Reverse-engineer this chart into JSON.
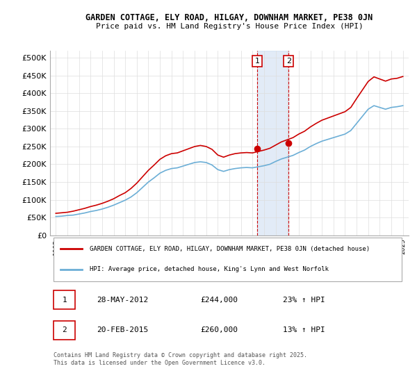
{
  "title1": "GARDEN COTTAGE, ELY ROAD, HILGAY, DOWNHAM MARKET, PE38 0JN",
  "title2": "Price paid vs. HM Land Registry's House Price Index (HPI)",
  "ylabel": "",
  "ylim": [
    0,
    520000
  ],
  "yticks": [
    0,
    50000,
    100000,
    150000,
    200000,
    250000,
    300000,
    350000,
    400000,
    450000,
    500000
  ],
  "ytick_labels": [
    "£0",
    "£50K",
    "£100K",
    "£150K",
    "£200K",
    "£250K",
    "£300K",
    "£350K",
    "£400K",
    "£450K",
    "£500K"
  ],
  "xlim_start": 1994.5,
  "xlim_end": 2025.5,
  "hpi_color": "#6baed6",
  "property_color": "#cc0000",
  "transaction1_date": 2012.41,
  "transaction1_price": 244000,
  "transaction2_date": 2015.13,
  "transaction2_price": 260000,
  "legend_property": "GARDEN COTTAGE, ELY ROAD, HILGAY, DOWNHAM MARKET, PE38 0JN (detached house)",
  "legend_hpi": "HPI: Average price, detached house, King's Lynn and West Norfolk",
  "table_row1": [
    "1",
    "28-MAY-2012",
    "£244,000",
    "23% ↑ HPI"
  ],
  "table_row2": [
    "2",
    "20-FEB-2015",
    "£260,000",
    "13% ↑ HPI"
  ],
  "footnote": "Contains HM Land Registry data © Crown copyright and database right 2025.\nThis data is licensed under the Open Government Licence v3.0.",
  "background_color": "#ffffff",
  "grid_color": "#dddddd",
  "shading_color": "#c6d9f0"
}
